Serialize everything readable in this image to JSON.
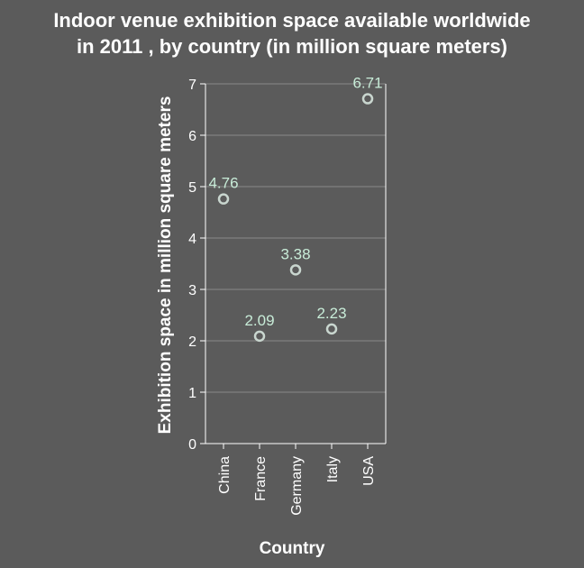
{
  "chart_data": {
    "type": "scatter",
    "title_lines": [
      "Indoor venue exhibition space available worldwide",
      "in 2011 , by country (in million square meters)"
    ],
    "xlabel": "Country",
    "ylabel": "Exhibition space in million square meters",
    "categories": [
      "China",
      "France",
      "Germany",
      "Italy",
      "USA"
    ],
    "values": [
      4.76,
      2.09,
      3.38,
      2.23,
      6.71
    ],
    "data_labels": [
      "4.76",
      "2.09",
      "3.38",
      "2.23",
      "6.71"
    ],
    "ylim": [
      0,
      7
    ],
    "yticks": [
      "0",
      "1",
      "2",
      "3",
      "4",
      "5",
      "6",
      "7"
    ],
    "grid": true,
    "colors": {
      "background": "#5b5b5b",
      "point": "#c9d6cf",
      "data_label": "#c8ecd8",
      "grid": "#8a8a8a"
    }
  }
}
